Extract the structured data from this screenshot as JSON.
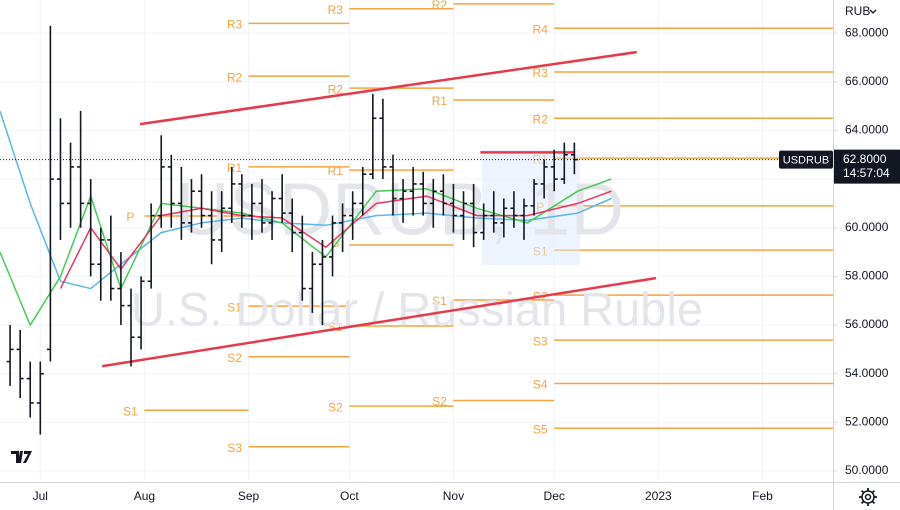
{
  "chart_data": {
    "type": "ohlc",
    "title": "USDRUB, 1D",
    "subtitle": "U.S. Dollar / Russian Ruble",
    "symbol": "USDRUB",
    "currency": "RUB",
    "last_price": {
      "value": 62.8,
      "label": "62.8000"
    },
    "countdown": "14:57:04",
    "color": "#131722",
    "grid": true,
    "xlim": [
      -12,
      236
    ],
    "ylim": [
      49.55,
      69.36
    ],
    "xticks": [
      {
        "value": 0,
        "label": "Jul"
      },
      {
        "value": 31,
        "label": "Aug"
      },
      {
        "value": 62,
        "label": "Sep"
      },
      {
        "value": 92,
        "label": "Oct"
      },
      {
        "value": 123,
        "label": "Nov"
      },
      {
        "value": 153,
        "label": "Dec"
      },
      {
        "value": 184,
        "label": "2023"
      },
      {
        "value": 215,
        "label": "Feb"
      }
    ],
    "yticks": [
      {
        "value": 50,
        "label": "50.0000"
      },
      {
        "value": 52,
        "label": "52.0000"
      },
      {
        "value": 54,
        "label": "54.0000"
      },
      {
        "value": 56,
        "label": "56.0000"
      },
      {
        "value": 58,
        "label": "58.0000"
      },
      {
        "value": 60,
        "label": "60.0000"
      },
      {
        "value": 62,
        "label": "62.0000"
      },
      {
        "value": 64,
        "label": "64.0000"
      },
      {
        "value": 66,
        "label": "66.0000"
      },
      {
        "value": 68,
        "label": "68.0000"
      }
    ],
    "x": [
      -9,
      -6,
      -3,
      0,
      3,
      6,
      9,
      12,
      15,
      18,
      21,
      24,
      27,
      30,
      33,
      36,
      39,
      42,
      45,
      48,
      51,
      54,
      57,
      60,
      63,
      66,
      69,
      72,
      75,
      78,
      81,
      84,
      87,
      90,
      93,
      96,
      99,
      102,
      105,
      108,
      111,
      114,
      117,
      120,
      123,
      126,
      129,
      132,
      135,
      138,
      141,
      144,
      147,
      150,
      153,
      156,
      159
    ],
    "open": [
      54.5,
      55,
      53.8,
      52.8,
      55,
      62,
      61,
      62.5,
      61,
      58.5,
      59.5,
      57.5,
      56.8,
      55.5,
      57.8,
      60.5,
      62.5,
      61,
      60.2,
      61.5,
      60.5,
      59.5,
      60.8,
      61.8,
      60.5,
      61,
      60.2,
      61.2,
      60.6,
      59.8,
      57.5,
      58.5,
      58.8,
      60.2,
      60.5,
      61,
      62.2,
      64.5,
      62.5,
      61.2,
      61.5,
      61.8,
      61,
      61.5,
      61,
      60.5,
      61,
      59.8,
      60.5,
      60.2,
      60.8,
      60.5,
      60.9,
      61.8,
      62.5,
      62,
      63
    ],
    "high": [
      56,
      55.8,
      54.5,
      54.5,
      68.3,
      64.5,
      63.5,
      64.8,
      62,
      60,
      60.5,
      59,
      57.5,
      58,
      61,
      63.8,
      63,
      62.5,
      62,
      62.2,
      61.5,
      61.5,
      62.5,
      62.2,
      61.8,
      62,
      61.5,
      62.2,
      61.2,
      60.5,
      59,
      59.5,
      60.5,
      61,
      61.5,
      62.5,
      65.5,
      65.3,
      63,
      62,
      62.5,
      62.3,
      62,
      62.2,
      61.8,
      61.5,
      61.8,
      61,
      61.5,
      61.2,
      61.5,
      61.2,
      62,
      62.8,
      63.2,
      63.5,
      63.5
    ],
    "low": [
      53.5,
      53,
      52.2,
      51.5,
      54.5,
      59.5,
      60,
      60,
      58,
      57,
      57,
      56,
      54.3,
      55,
      57.5,
      60,
      60,
      59.5,
      59.8,
      60,
      58.5,
      59,
      60.2,
      60,
      59.5,
      59.8,
      59.5,
      60.2,
      59,
      57,
      56.5,
      56,
      58,
      59,
      59.5,
      60.5,
      62,
      62,
      60.5,
      60.2,
      60.5,
      60.5,
      60,
      60.5,
      59.8,
      59.5,
      59.2,
      59.5,
      59.8,
      59.6,
      60,
      59.5,
      60.5,
      61.2,
      61.5,
      61.8,
      62.2
    ],
    "close": [
      55,
      53.8,
      52.8,
      54,
      62,
      61,
      62.5,
      61,
      58.5,
      59.5,
      57.5,
      56.8,
      55.5,
      57.8,
      60.5,
      62.5,
      61,
      60.2,
      61.5,
      60.5,
      59.5,
      60.8,
      61.8,
      60.5,
      61,
      60.2,
      61.2,
      60.6,
      59.8,
      57.5,
      58.5,
      58.8,
      60.2,
      60.5,
      61,
      62.2,
      64.5,
      62.5,
      61.2,
      61.5,
      61.8,
      61,
      61.5,
      61,
      60.5,
      61,
      59.8,
      60.5,
      60.2,
      60.8,
      60.5,
      60.9,
      61.8,
      62.5,
      62,
      63,
      62.8
    ],
    "moving_averages": {
      "x": [
        -12,
        -3,
        6,
        15,
        24,
        36,
        48,
        60,
        72,
        85,
        100,
        115,
        130,
        145,
        160,
        170
      ],
      "series": [
        {
          "color": "#5cb6e6",
          "values": [
            64.8,
            61,
            57.8,
            57.5,
            58.5,
            59.8,
            60.2,
            60.4,
            60.2,
            60.1,
            60.5,
            60.6,
            60.4,
            60.3,
            60.6,
            61.2
          ]
        },
        {
          "color": "#46c956",
          "values": [
            59,
            56,
            58,
            61.3,
            57.5,
            61,
            60.8,
            60.6,
            60.2,
            58.8,
            61.5,
            61.6,
            60.8,
            60.2,
            61.5,
            62
          ]
        },
        {
          "color": "#e8365f",
          "values": [
            null,
            null,
            57.5,
            60,
            58.3,
            60.5,
            60.8,
            60.5,
            60.4,
            59.2,
            61,
            61.3,
            60.5,
            60.5,
            61,
            61.5
          ]
        }
      ]
    },
    "pivot_color": "#f5a442",
    "pivot_periods": [
      {
        "xlim": [
          31,
          62
        ],
        "levels": [
          {
            "label": "P",
            "value": 60.48
          },
          {
            "label": "S1",
            "value": 52.5
          }
        ]
      },
      {
        "xlim": [
          62,
          92
        ],
        "levels": [
          {
            "label": "R3",
            "value": 68.4
          },
          {
            "label": "R2",
            "value": 66.23
          },
          {
            "label": "R1",
            "value": 62.5
          },
          {
            "label": "S1",
            "value": 56.78
          },
          {
            "label": "S2",
            "value": 54.7
          },
          {
            "label": "S3",
            "value": 51.0
          }
        ]
      },
      {
        "xlim": [
          92,
          123
        ],
        "levels": [
          {
            "label": "R3",
            "value": 69.0
          },
          {
            "label": "R2",
            "value": 65.74
          },
          {
            "label": "R1",
            "value": 62.37
          },
          {
            "label": "P",
            "value": 59.29
          },
          {
            "label": "S1",
            "value": 55.96
          },
          {
            "label": "S2",
            "value": 52.67
          }
        ]
      },
      {
        "xlim": [
          123,
          153
        ],
        "levels": [
          {
            "label": "R2",
            "value": 69.2
          },
          {
            "label": "R1",
            "value": 65.25
          },
          {
            "label": "S1",
            "value": 57.03
          },
          {
            "label": "S2",
            "value": 52.9
          }
        ]
      },
      {
        "xlim": [
          153,
          236
        ],
        "levels": [
          {
            "label": "R4",
            "value": 68.2
          },
          {
            "label": "R3",
            "value": 66.4
          },
          {
            "label": "R2",
            "value": 64.5
          },
          {
            "label": "R1",
            "value": 62.86
          },
          {
            "label": "P",
            "value": 60.9
          },
          {
            "label": "S1",
            "value": 59.08
          },
          {
            "label": "S2",
            "value": 57.23
          },
          {
            "label": "S3",
            "value": 55.38
          },
          {
            "label": "S4",
            "value": 53.6
          },
          {
            "label": "S5",
            "value": 51.76
          }
        ]
      }
    ],
    "trendlines": [
      {
        "color": "#e8394a",
        "x": [
          29.7,
          177.6
        ],
        "values": [
          64.26,
          67.22
        ]
      },
      {
        "color": "#e8394a",
        "x": [
          18.4,
          183.3
        ],
        "values": [
          54.31,
          57.93
        ]
      },
      {
        "color": "#e8394a",
        "x": [
          131,
          159
        ],
        "values": [
          63.1,
          63.1
        ]
      }
    ]
  }
}
